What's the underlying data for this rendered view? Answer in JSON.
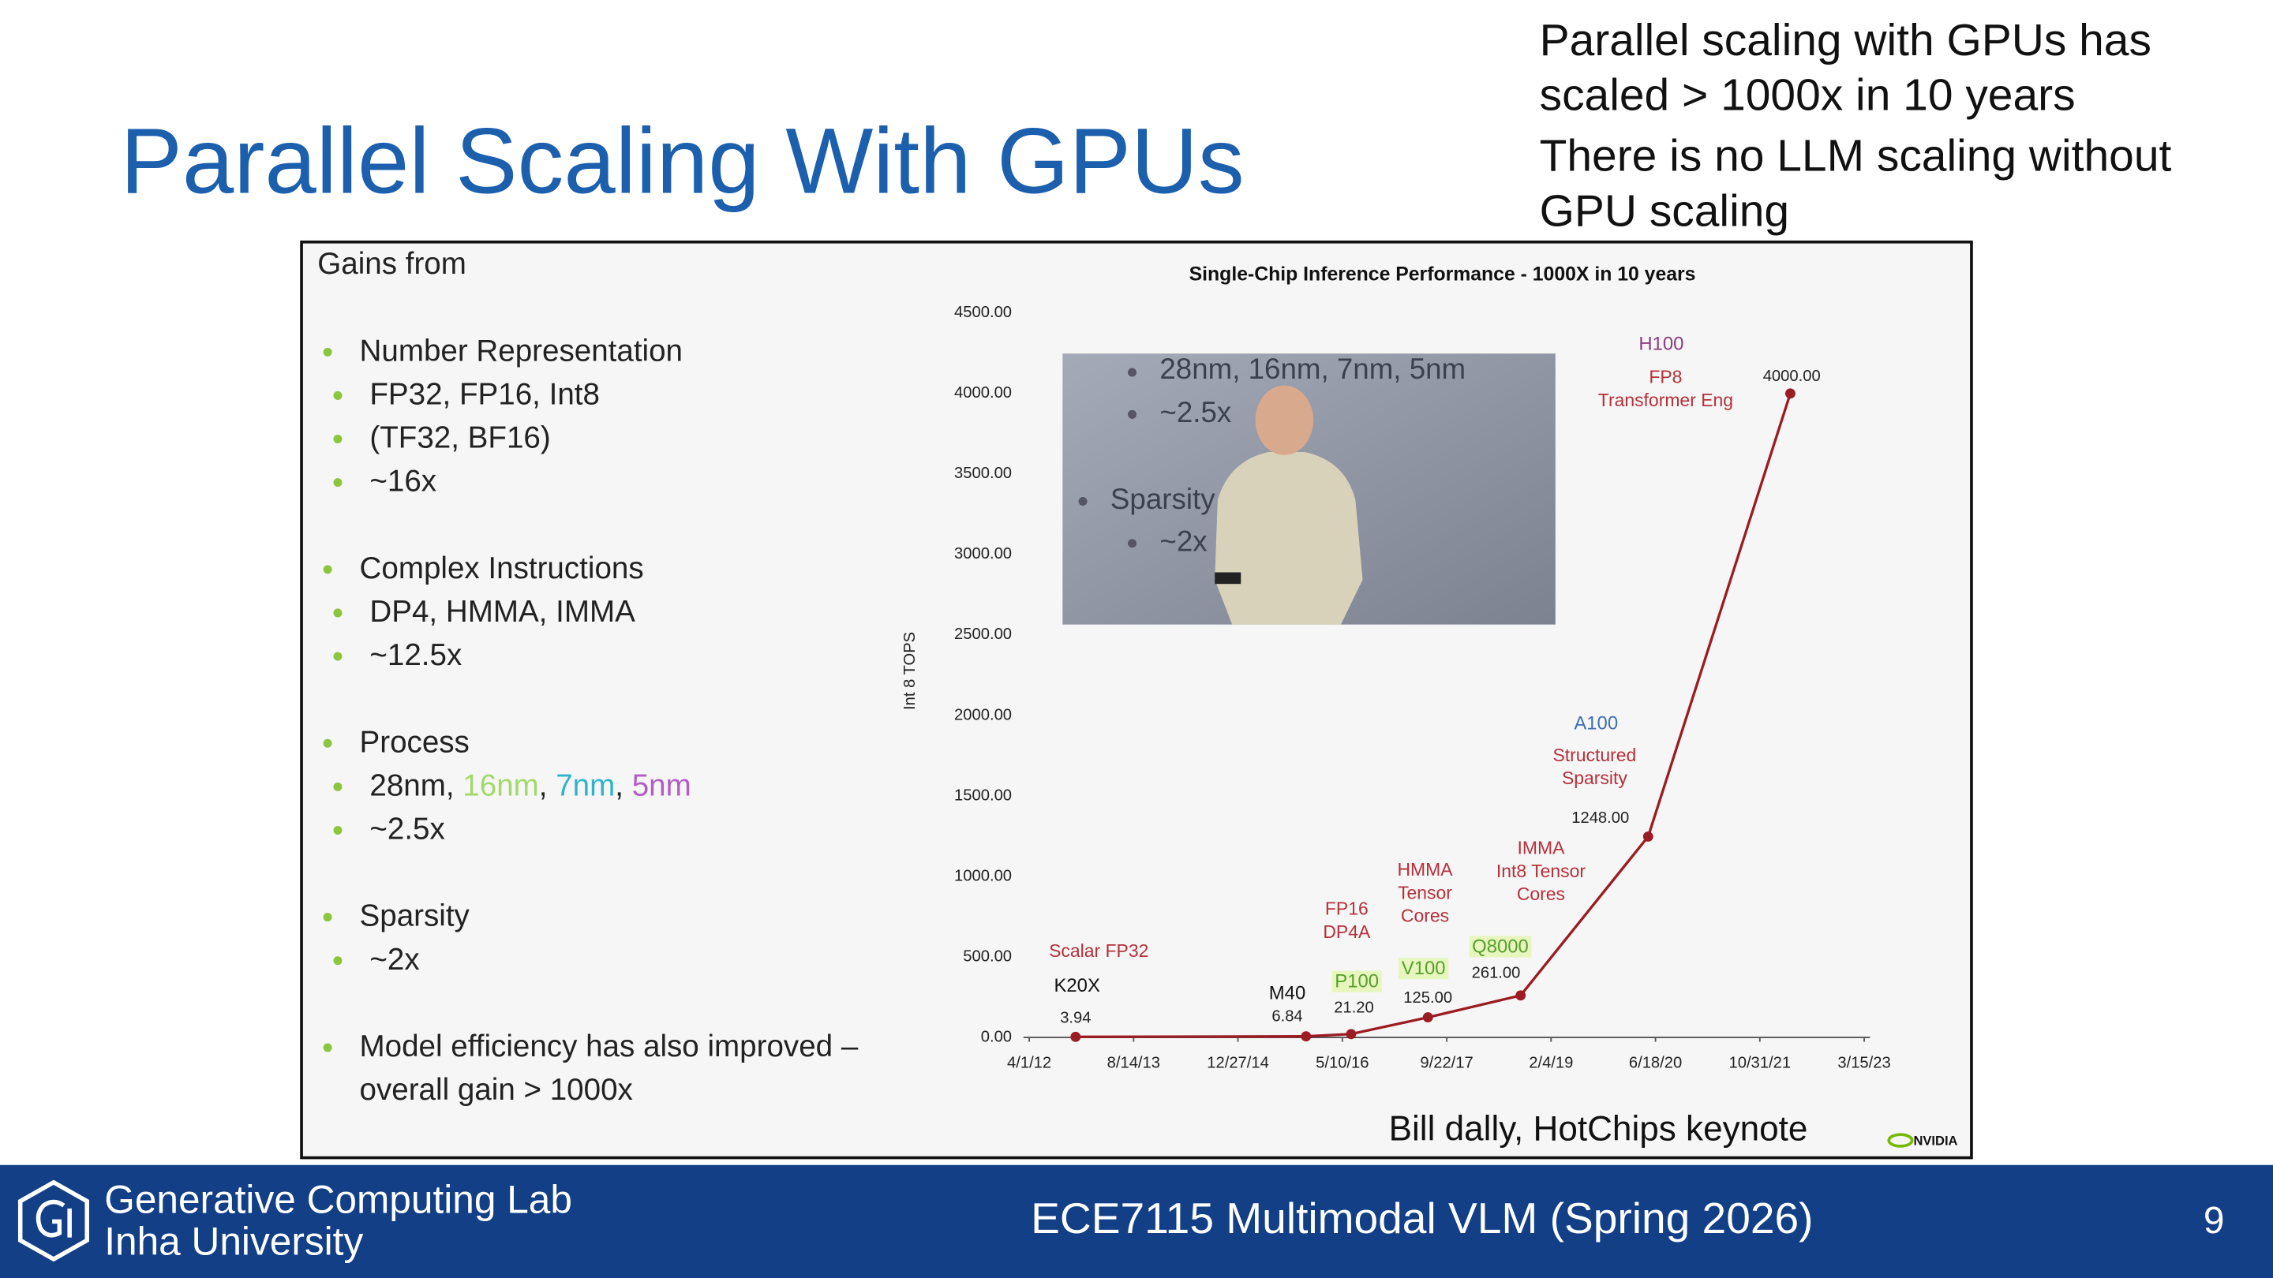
{
  "slide_title": "Parallel Scaling With GPUs",
  "notes": [
    "Parallel scaling with GPUs has scaled > 1000x in 10 years",
    "There is no LLM scaling without GPU scaling"
  ],
  "gains": {
    "heading": "Gains from",
    "items": [
      {
        "text": "Number Representation",
        "subitems": [
          "FP32, FP16, Int8",
          "(TF32, BF16)",
          "~16x"
        ]
      },
      {
        "text": "Complex Instructions",
        "subitems": [
          "DP4, HMMA, IMMA",
          "~12.5x"
        ]
      },
      {
        "text": "Process",
        "subitems": [
          [
            "28nm, ",
            "16nm",
            ", ",
            "7nm",
            ", ",
            "5nm"
          ],
          "~2.5x"
        ]
      },
      {
        "text": "Sparsity",
        "subitems": [
          "~2x"
        ]
      },
      {
        "text": [
          "Model efficiency has also improved –",
          "overall gain > 1000x"
        ],
        "subitems": []
      }
    ]
  },
  "inset_photo": {
    "lines": [
      "28nm, 16nm, 7nm, 5nm",
      "~2.5x",
      "Sparsity",
      "~2x"
    ]
  },
  "chart_data": {
    "type": "line",
    "title": "Single-Chip Inference Performance - 1000X in 10 years",
    "y_label": "Int 8 TOPS",
    "x": [
      "2012-11-09",
      "2015-11-18",
      "2016-06-21",
      "2017-06-24",
      "2018-09-11",
      "2020-05-14",
      "2022-03-26"
    ],
    "values": [
      3.94,
      6.84,
      21.2,
      125,
      261,
      1248,
      4000
    ],
    "value_labels": [
      "3.94",
      "6.84",
      "21.20",
      "125.00",
      "261.00",
      "1248.00",
      "4000.00"
    ],
    "point_labels": [
      "K20X",
      "M40",
      "P100",
      "V100",
      "Q8000",
      "A100",
      "H100"
    ],
    "annotations": [
      [
        "Scalar FP32"
      ],
      [
        "FP16",
        "DP4A"
      ],
      [
        "HMMA",
        "Tensor",
        "Cores"
      ],
      [
        "IMMA",
        "Int8 Tensor",
        "Cores"
      ],
      [
        "Structured",
        "Sparsity"
      ],
      [
        "FP8",
        "Transformer Eng"
      ]
    ],
    "color": "#9b1c22",
    "xlim": [
      "2012-04-01",
      "2023-03-15"
    ],
    "xticks": [
      {
        "value": "2012-04-01",
        "label": "4/1/12"
      },
      {
        "value": "2013-08-14",
        "label": "8/14/13"
      },
      {
        "value": "2014-12-27",
        "label": "12/27/14"
      },
      {
        "value": "2016-05-10",
        "label": "5/10/16"
      },
      {
        "value": "2017-09-22",
        "label": "9/22/17"
      },
      {
        "value": "2019-02-04",
        "label": "2/4/19"
      },
      {
        "value": "2020-06-18",
        "label": "6/18/20"
      },
      {
        "value": "2021-10-31",
        "label": "10/31/21"
      },
      {
        "value": "2023-03-15",
        "label": "3/15/23"
      }
    ],
    "ylim": [
      0,
      4500
    ],
    "yticks": [
      {
        "value": 0,
        "label": "0.00"
      },
      {
        "value": 500,
        "label": "500.00"
      },
      {
        "value": 1000,
        "label": "1000.00"
      },
      {
        "value": 1500,
        "label": "1500.00"
      },
      {
        "value": 2000,
        "label": "2000.00"
      },
      {
        "value": 2500,
        "label": "2500.00"
      },
      {
        "value": 3000,
        "label": "3000.00"
      },
      {
        "value": 3500,
        "label": "3500.00"
      },
      {
        "value": 4000,
        "label": "4000.00"
      },
      {
        "value": 4500,
        "label": "4500.00"
      }
    ],
    "grid": false
  },
  "caption": "Bill dally, HotChips keynote",
  "logo": "NVIDIA",
  "footer": {
    "lab": "Generative Computing Lab",
    "university": "Inha University",
    "course": "ECE7115 Multimodal VLM (Spring 2026)",
    "page": "9"
  }
}
